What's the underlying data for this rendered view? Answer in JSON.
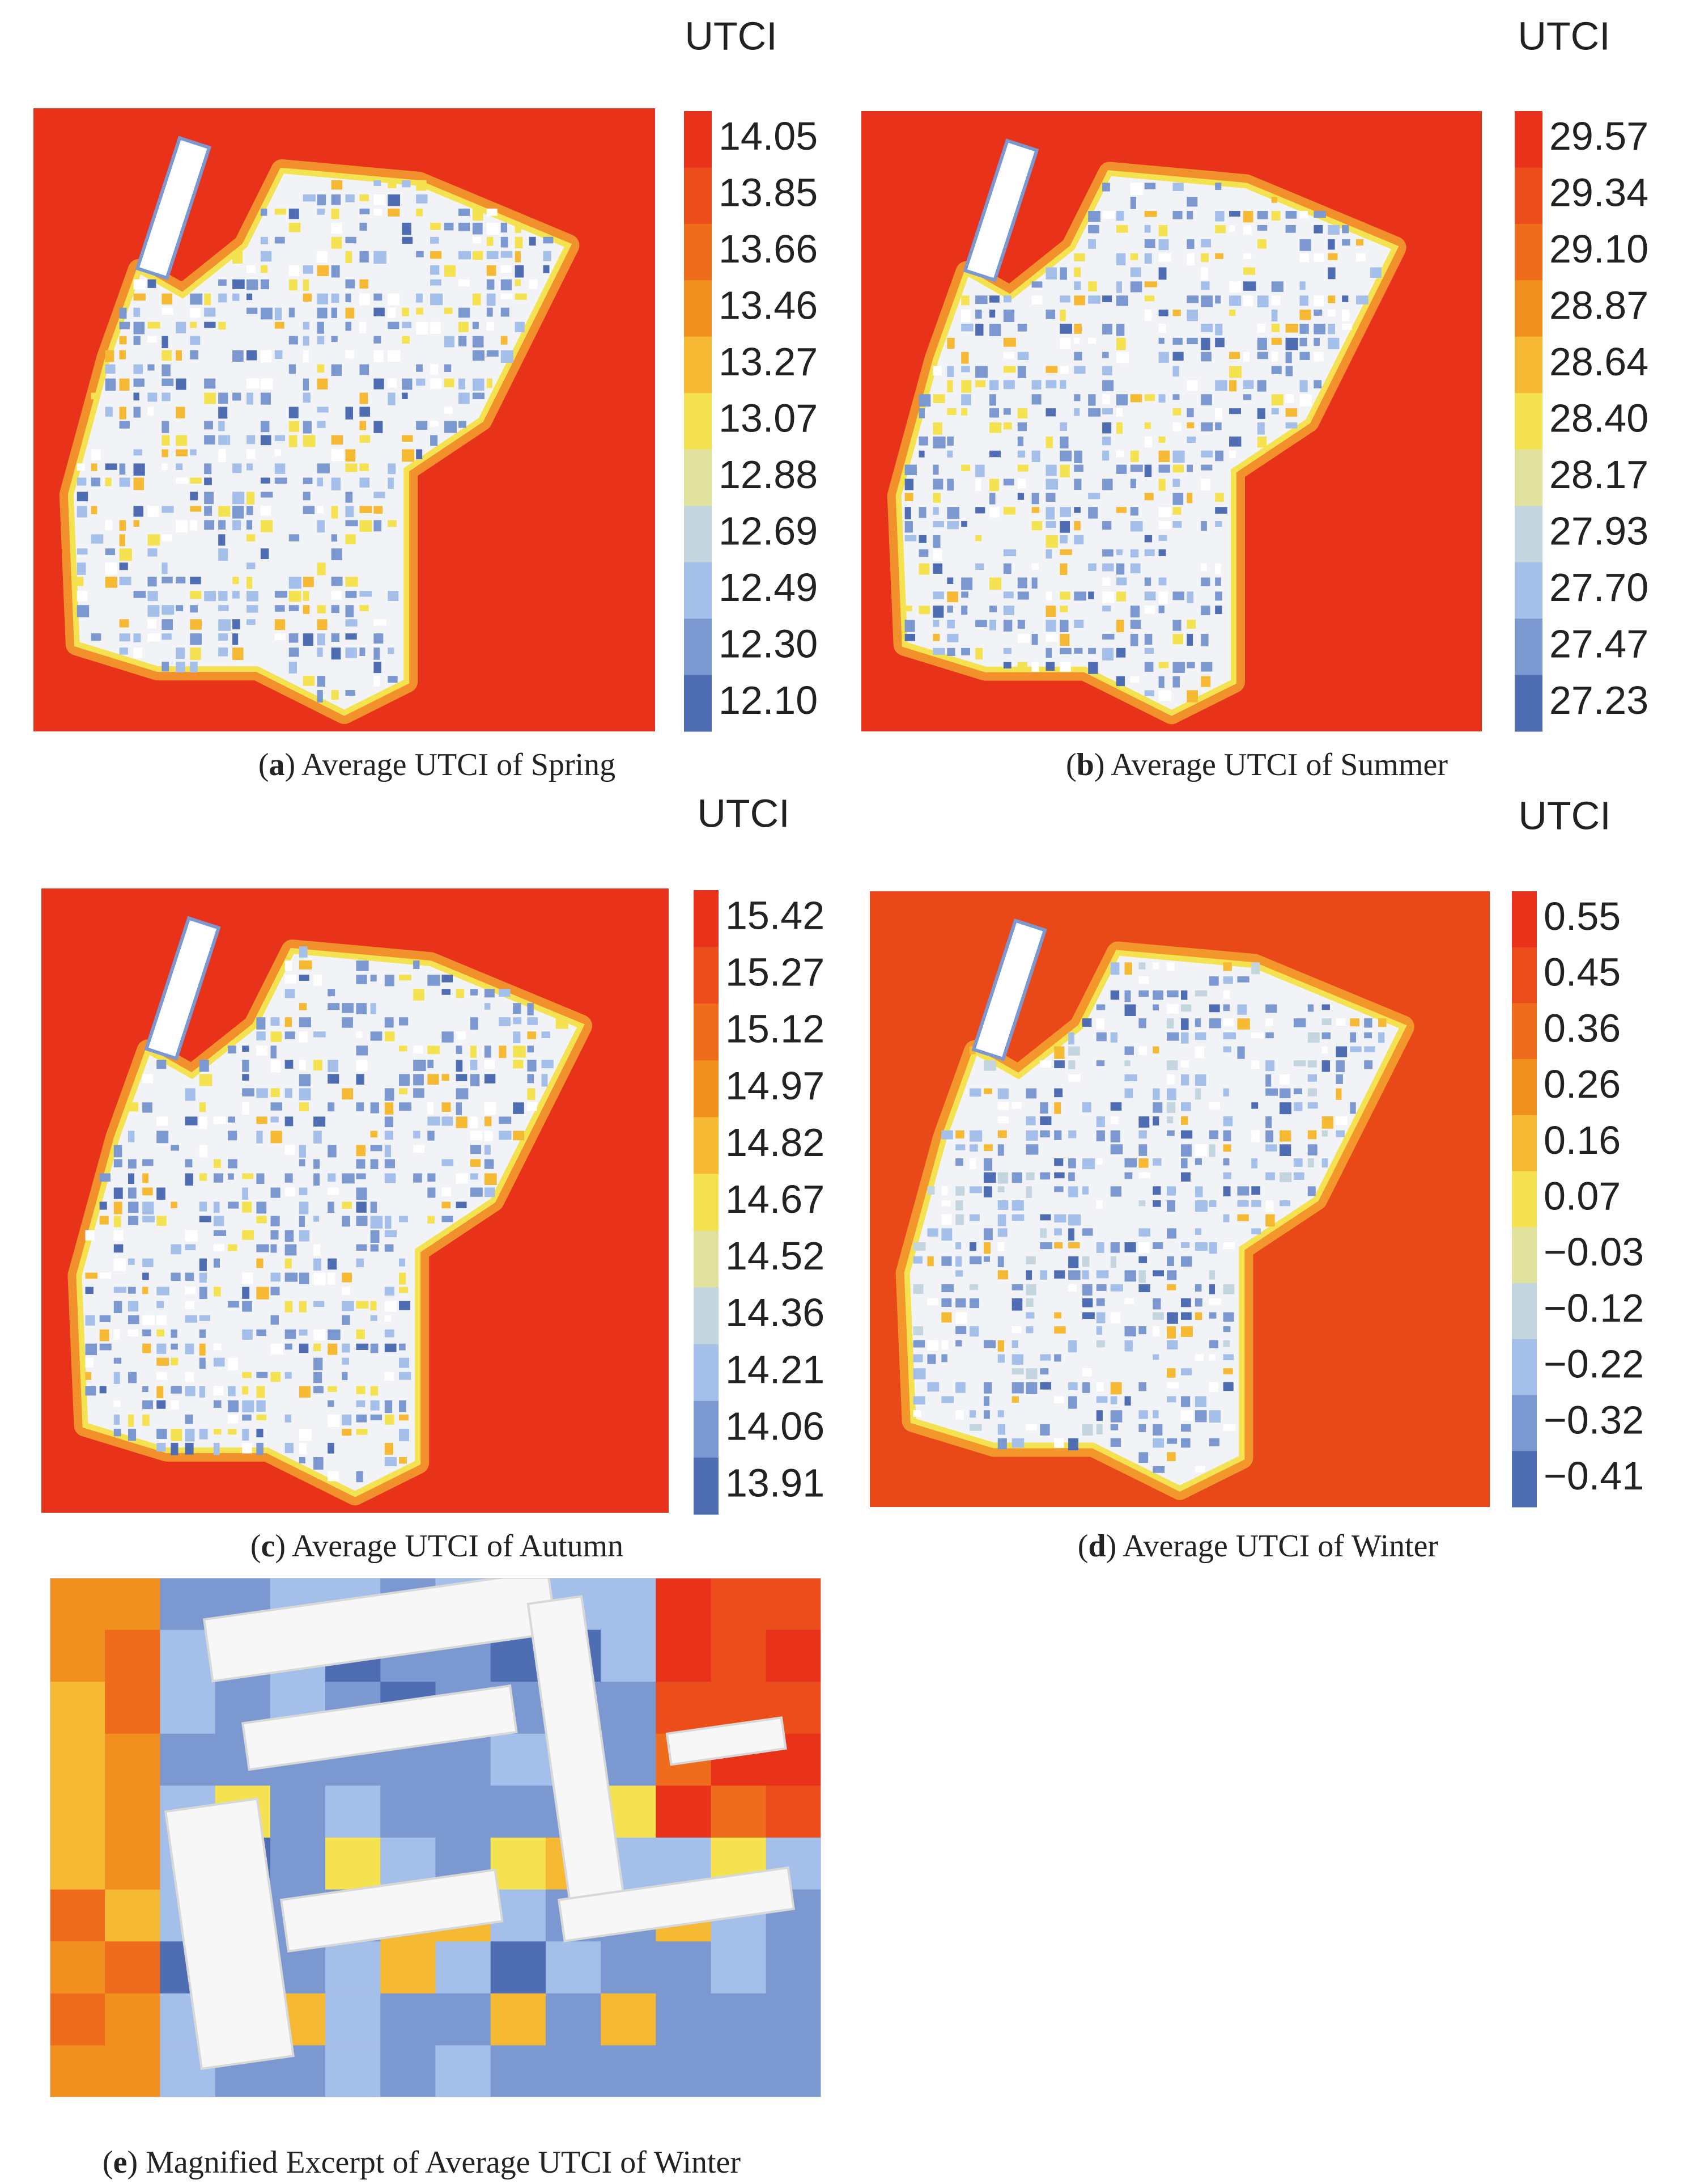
{
  "colorbar_colors": [
    "#e8321a",
    "#eb4d1b",
    "#ef6c1d",
    "#f2901f",
    "#f6b934",
    "#f4e250",
    "#e0e29e",
    "#c3d5df",
    "#a4bfe9",
    "#7c98d0",
    "#4e6db3"
  ],
  "panels": [
    {
      "caption": [
        "(",
        "a",
        ") Average UTCI of Spring"
      ],
      "colorbar": {
        "title": "UTCI",
        "ticks": [
          14.05,
          13.85,
          13.66,
          13.46,
          13.27,
          13.07,
          12.88,
          12.69,
          12.49,
          {
            "value": 12.3,
            "label": "12.30"
          },
          {
            "value": 12.1,
            "label": "12.10"
          }
        ]
      }
    },
    {
      "caption": [
        "(",
        "b",
        ") Average UTCI of Summer"
      ],
      "colorbar": {
        "title": "UTCI",
        "ticks": [
          29.57,
          29.34,
          {
            "value": 29.1,
            "label": "29.10"
          },
          28.87,
          28.64,
          {
            "value": 28.4,
            "label": "28.40"
          },
          28.17,
          27.93,
          {
            "value": 27.7,
            "label": "27.70"
          },
          27.47,
          27.23
        ]
      }
    },
    {
      "caption": [
        "(",
        "c",
        ") Average UTCI of Autumn"
      ],
      "colorbar": {
        "title": "UTCI",
        "ticks": [
          15.42,
          15.27,
          15.12,
          14.97,
          14.82,
          14.67,
          14.52,
          14.36,
          14.21,
          14.06,
          13.91
        ]
      }
    },
    {
      "caption": [
        "(",
        "d",
        ") Average UTCI of Winter"
      ],
      "colorbar": {
        "title": "UTCI",
        "ticks": [
          0.55,
          0.45,
          0.36,
          0.26,
          0.16,
          0.07,
          {
            "value": -0.03,
            "label": "−0.03"
          },
          {
            "value": -0.12,
            "label": "−0.12"
          },
          {
            "value": -0.22,
            "label": "−0.22"
          },
          {
            "value": -0.32,
            "label": "−0.32"
          },
          {
            "value": -0.41,
            "label": "−0.41"
          }
        ]
      }
    },
    {
      "caption": [
        "(",
        "e",
        ") Magnified Excerpt of Average UTCI of Winter"
      ]
    }
  ]
}
